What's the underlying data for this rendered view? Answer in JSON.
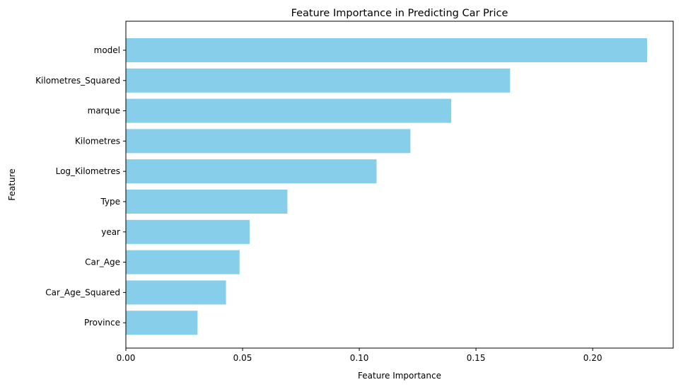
{
  "chart_data": {
    "type": "bar",
    "orientation": "horizontal",
    "title": "Feature Importance in Predicting Car Price",
    "xlabel": "Feature Importance",
    "ylabel": "Feature",
    "categories": [
      "model",
      "Kilometres_Squared",
      "marque",
      "Kilometres",
      "Log_Kilometres",
      "Type",
      "year",
      "Car_Age",
      "Car_Age_Squared",
      "Province"
    ],
    "values": [
      0.2233,
      0.1646,
      0.1394,
      0.1219,
      0.1074,
      0.0692,
      0.053,
      0.0487,
      0.0429,
      0.0307
    ],
    "xlim": [
      0,
      0.2345
    ],
    "xticks": [
      0.0,
      0.05,
      0.1,
      0.15,
      0.2
    ],
    "xtick_labels": [
      "0.00",
      "0.05",
      "0.10",
      "0.15",
      "0.20"
    ],
    "bar_color": "#87CEEB",
    "grid": false
  }
}
